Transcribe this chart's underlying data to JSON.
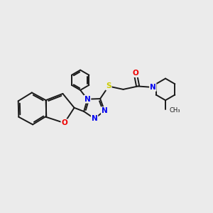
{
  "background_color": "#ebebeb",
  "bond_color": "#1a1a1a",
  "N_color": "#0000ee",
  "O_color": "#ee0000",
  "S_color": "#cccc00",
  "line_width": 1.4,
  "fig_width": 3.0,
  "fig_height": 3.0,
  "dpi": 100,
  "xlim": [
    0,
    10
  ],
  "ylim": [
    0,
    10
  ]
}
